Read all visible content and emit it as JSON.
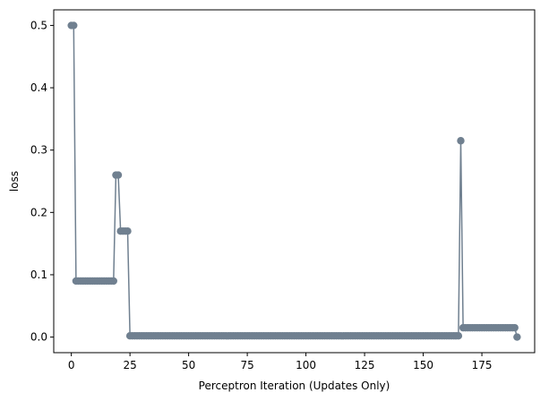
{
  "chart_data": {
    "type": "line",
    "xlabel": "Perceptron Iteration (Updates Only)",
    "ylabel": "loss",
    "xlim": [
      -7.5,
      197.5
    ],
    "ylim": [
      -0.025,
      0.525
    ],
    "xticks": [
      0,
      25,
      50,
      75,
      100,
      125,
      150,
      175
    ],
    "yticks": [
      0.0,
      0.1,
      0.2,
      0.3,
      0.4,
      0.5
    ],
    "ytick_labels": [
      "0.0",
      "0.1",
      "0.2",
      "0.3",
      "0.4",
      "0.5"
    ],
    "grid": false,
    "color": "#708090",
    "series": [
      {
        "name": "",
        "segments": [
          {
            "from": 0,
            "to": 1,
            "value": 0.5
          },
          {
            "from": 2,
            "to": 18,
            "value": 0.09
          },
          {
            "from": 19,
            "to": 20,
            "value": 0.26
          },
          {
            "from": 21,
            "to": 24,
            "value": 0.17
          },
          {
            "from": 25,
            "to": 165,
            "value": 0.002
          },
          {
            "from": 166,
            "to": 166,
            "value": 0.315
          },
          {
            "from": 167,
            "to": 189,
            "value": 0.015
          },
          {
            "from": 190,
            "to": 190,
            "value": 0.0
          }
        ]
      }
    ]
  }
}
